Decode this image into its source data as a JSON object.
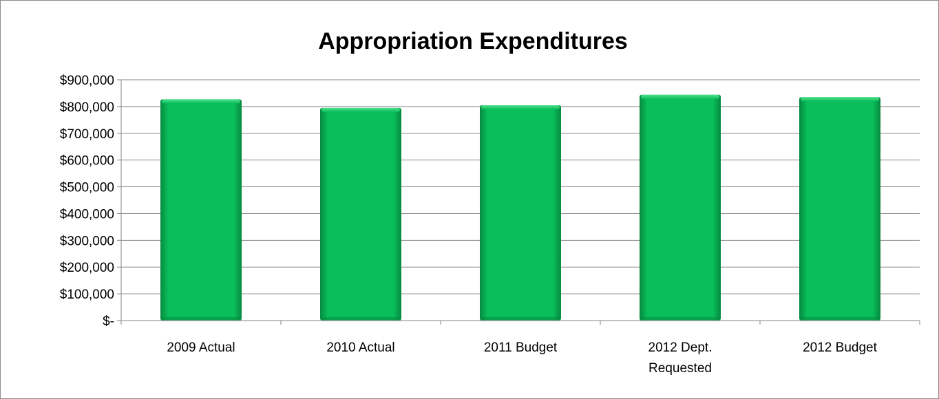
{
  "chart_data": {
    "type": "bar",
    "title": "Appropriation Expenditures",
    "xlabel": "",
    "ylabel": "",
    "categories": [
      [
        "2009 Actual"
      ],
      [
        "2010 Actual"
      ],
      [
        "2011 Budget"
      ],
      [
        "2012 Dept.",
        "Requested"
      ],
      [
        "2012 Budget"
      ]
    ],
    "values": [
      827000,
      795000,
      805000,
      844000,
      835000
    ],
    "ylim": [
      0,
      900000
    ],
    "y_ticks": [
      0,
      100000,
      200000,
      300000,
      400000,
      500000,
      600000,
      700000,
      800000,
      900000
    ],
    "y_tick_labels": [
      "$-",
      "$100,000",
      "$200,000",
      "$300,000",
      "$400,000",
      "$500,000",
      "$600,000",
      "$700,000",
      "$800,000",
      "$900,000"
    ],
    "grid": true,
    "legend": "none",
    "colors": {
      "bar": "#0abf5b",
      "bar_dark": "#068a40",
      "bar_light": "#4fe08e",
      "grid": "#868686",
      "axis": "#868686",
      "border": "#8c8c8c"
    }
  }
}
